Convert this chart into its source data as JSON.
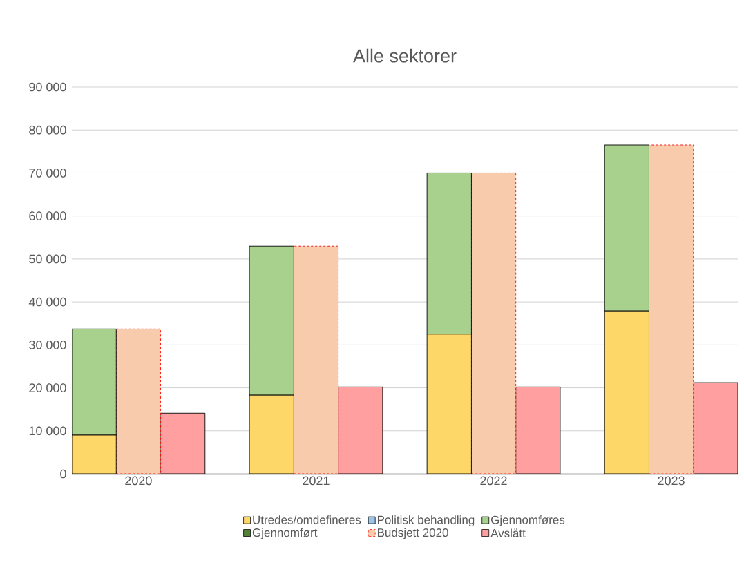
{
  "chart_data": {
    "type": "bar",
    "title": "Alle sektorer",
    "stacked": true,
    "categories": [
      null,
      "2020",
      null,
      null,
      null,
      "2021",
      null,
      null,
      null,
      "2022",
      null,
      null,
      null,
      "2023",
      null
    ],
    "series": [
      {
        "name": "Utredes/omdefineres",
        "color": "#fdd868",
        "values": [
          9000,
          null,
          null,
          null,
          18300,
          null,
          null,
          null,
          32500,
          null,
          null,
          null,
          37900,
          null,
          null
        ]
      },
      {
        "name": "Politisk behandling",
        "color": "#9dc3e6",
        "values": [
          0,
          null,
          null,
          null,
          0,
          null,
          null,
          null,
          0,
          null,
          null,
          null,
          0,
          null,
          null
        ]
      },
      {
        "name": "Gjennomføres",
        "color": "#a9d18e",
        "values": [
          24700,
          null,
          null,
          null,
          34700,
          null,
          null,
          null,
          37500,
          null,
          null,
          null,
          38600,
          null,
          null
        ]
      },
      {
        "name": "Gjennomført",
        "color": "#548235",
        "values": [
          0,
          null,
          null,
          null,
          0,
          null,
          null,
          null,
          0,
          null,
          null,
          null,
          0,
          null,
          null
        ]
      },
      {
        "name": "Budsjett 2020",
        "color": "#f8cbad",
        "line_style": "dashed",
        "values": [
          null,
          33700,
          null,
          null,
          null,
          53000,
          null,
          null,
          null,
          70000,
          null,
          null,
          null,
          76500,
          null
        ]
      },
      {
        "name": "Avslått",
        "color": "#ff9f9f",
        "values": [
          null,
          null,
          14100,
          null,
          null,
          null,
          20200,
          null,
          null,
          null,
          20200,
          null,
          null,
          null,
          21200
        ]
      }
    ],
    "ylim": [
      0,
      90000
    ],
    "yticks": [
      0,
      {
        "value": 10000,
        "label": "10 000"
      },
      {
        "value": 20000,
        "label": "20 000"
      },
      {
        "value": 30000,
        "label": "30 000"
      },
      {
        "value": 40000,
        "label": "40 000"
      },
      {
        "value": 50000,
        "label": "50 000"
      },
      {
        "value": 60000,
        "label": "60 000"
      },
      {
        "value": 70000,
        "label": "70 000"
      },
      {
        "value": 80000,
        "label": "80 000"
      },
      {
        "value": 90000,
        "label": "90 000"
      }
    ],
    "grid": "y",
    "legend": "bottom"
  }
}
